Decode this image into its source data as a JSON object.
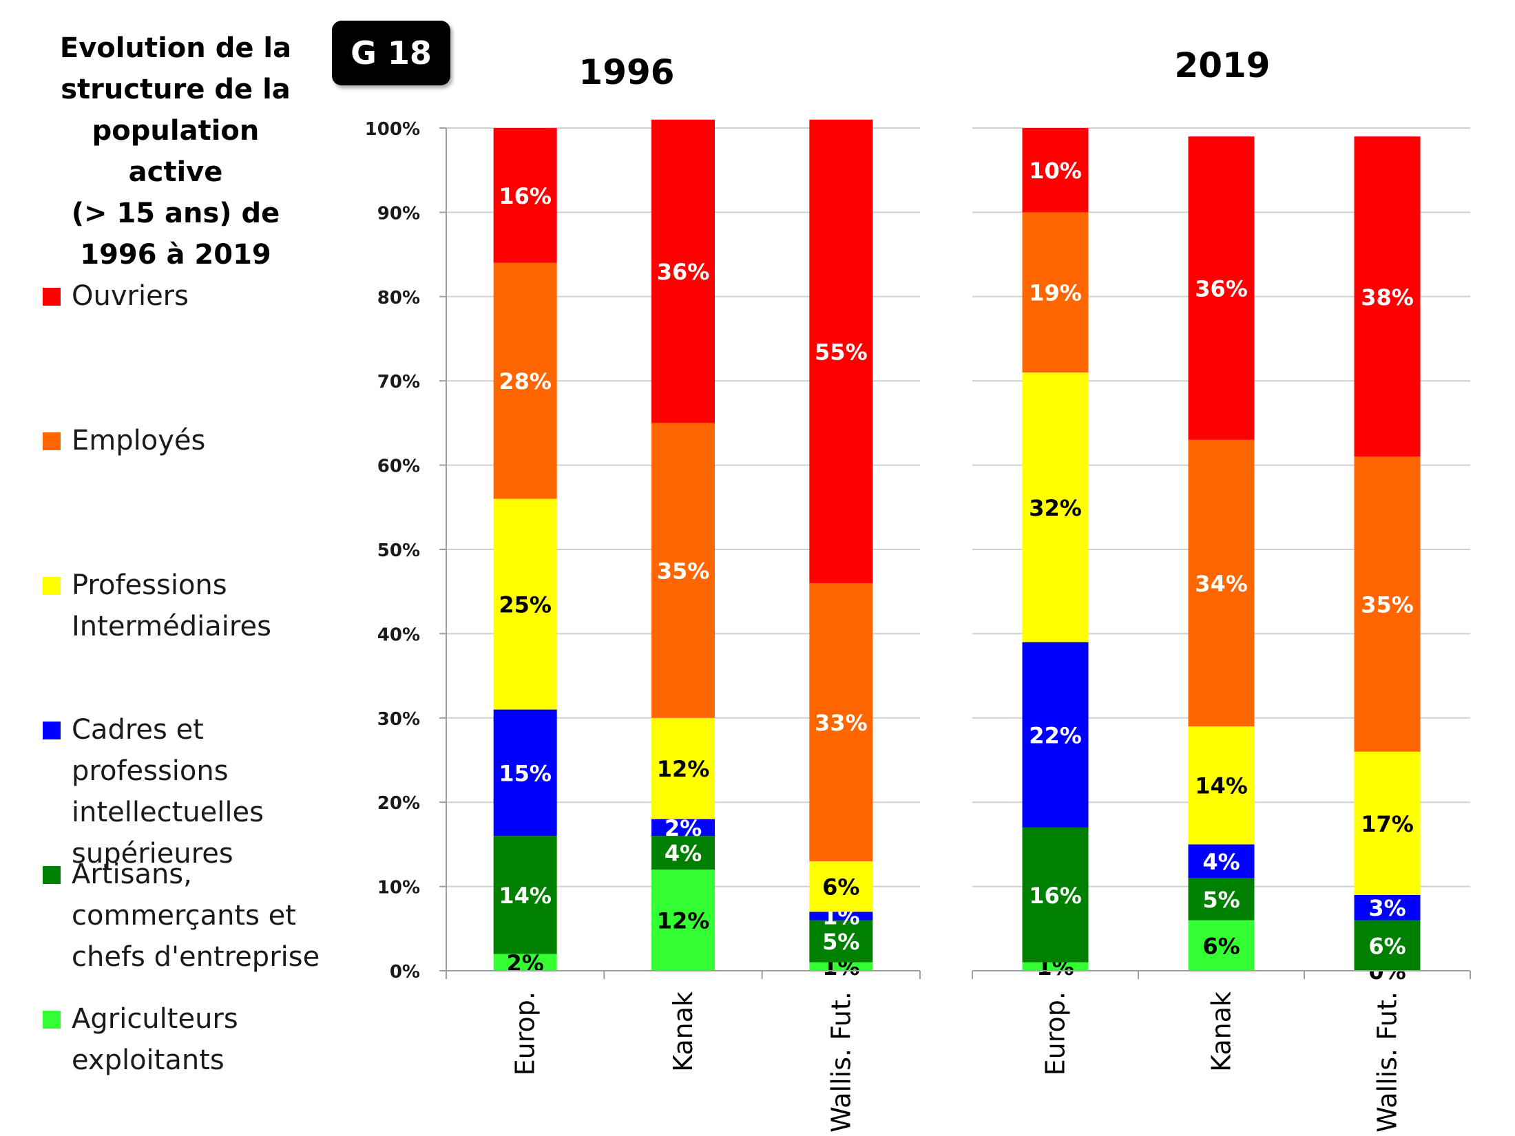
{
  "header": {
    "title_lines": [
      "Evolution de la",
      "structure de la",
      "population",
      "active",
      "(> 15 ans) de",
      "1996 à 2019"
    ],
    "badge": "G 18"
  },
  "legend": {
    "items": [
      {
        "lines": [
          "Ouvriers"
        ],
        "color": "#ff0000"
      },
      {
        "lines": [
          "Employés"
        ],
        "color": "#ff6600"
      },
      {
        "lines": [
          "Professions",
          "Intermédiaires"
        ],
        "color": "#ffff00"
      },
      {
        "lines": [
          "Cadres et",
          "professions",
          "intellectuelles",
          "supérieures"
        ],
        "color": "#0000ff"
      },
      {
        "lines": [
          "Artisans,",
          "commerçants et",
          "chefs d'entreprise"
        ],
        "color": "#008000"
      },
      {
        "lines": [
          "Agriculteurs",
          "exploitants"
        ],
        "color": "#33ff33"
      }
    ]
  },
  "chart_data": [
    {
      "type": "bar",
      "stacked": true,
      "title": "1996",
      "categories": [
        "Europ.",
        "Kanak",
        "Wallis. Fut."
      ],
      "y_ticks": [
        "0%",
        "10%",
        "20%",
        "30%",
        "40%",
        "50%",
        "60%",
        "70%",
        "80%",
        "90%",
        "100%"
      ],
      "ylim": [
        0,
        100
      ],
      "grid": true,
      "series": [
        {
          "name": "Agriculteurs exploitants",
          "values": [
            2,
            12,
            1
          ],
          "labels": [
            "2%",
            "12%",
            "1%"
          ],
          "color": "#33ff33"
        },
        {
          "name": "Artisans, commerçants et chefs d'entreprise",
          "values": [
            14,
            4,
            5
          ],
          "labels": [
            "14%",
            "4%",
            "5%"
          ],
          "color": "#008000"
        },
        {
          "name": "Cadres et professions intellectuelles supérieures",
          "values": [
            15,
            2,
            1
          ],
          "labels": [
            "15%",
            "2%",
            "1%"
          ],
          "color": "#0000ff"
        },
        {
          "name": "Professions Intermédiaires",
          "values": [
            25,
            12,
            6
          ],
          "labels": [
            "25%",
            "12%",
            "6%"
          ],
          "color": "#ffff00"
        },
        {
          "name": "Employés",
          "values": [
            28,
            35,
            33
          ],
          "labels": [
            "28%",
            "35%",
            "33%"
          ],
          "color": "#ff6600"
        },
        {
          "name": "Ouvriers",
          "values": [
            16,
            36,
            55
          ],
          "labels": [
            "16%",
            "36%",
            "55%"
          ],
          "color": "#ff0000"
        }
      ]
    },
    {
      "type": "bar",
      "stacked": true,
      "title": "2019",
      "categories": [
        "Europ.",
        "Kanak",
        "Wallis. Fut."
      ],
      "ylim": [
        0,
        100
      ],
      "grid": true,
      "series": [
        {
          "name": "Agriculteurs exploitants",
          "values": [
            1,
            6,
            0
          ],
          "labels": [
            "1%",
            "6%",
            "0%"
          ],
          "color": "#33ff33"
        },
        {
          "name": "Artisans, commerçants et chefs d'entreprise",
          "values": [
            16,
            5,
            6
          ],
          "labels": [
            "16%",
            "5%",
            "6%"
          ],
          "color": "#008000"
        },
        {
          "name": "Cadres et professions intellectuelles supérieures",
          "values": [
            22,
            4,
            3
          ],
          "labels": [
            "22%",
            "4%",
            "3%"
          ],
          "color": "#0000ff"
        },
        {
          "name": "Professions Intermédiaires",
          "values": [
            32,
            14,
            17
          ],
          "labels": [
            "32%",
            "14%",
            "17%"
          ],
          "color": "#ffff00"
        },
        {
          "name": "Employés",
          "values": [
            19,
            34,
            35
          ],
          "labels": [
            "19%",
            "34%",
            "35%"
          ],
          "color": "#ff6600"
        },
        {
          "name": "Ouvriers",
          "values": [
            10,
            36,
            38
          ],
          "labels": [
            "10%",
            "36%",
            "38%"
          ],
          "color": "#ff0000"
        }
      ]
    }
  ]
}
